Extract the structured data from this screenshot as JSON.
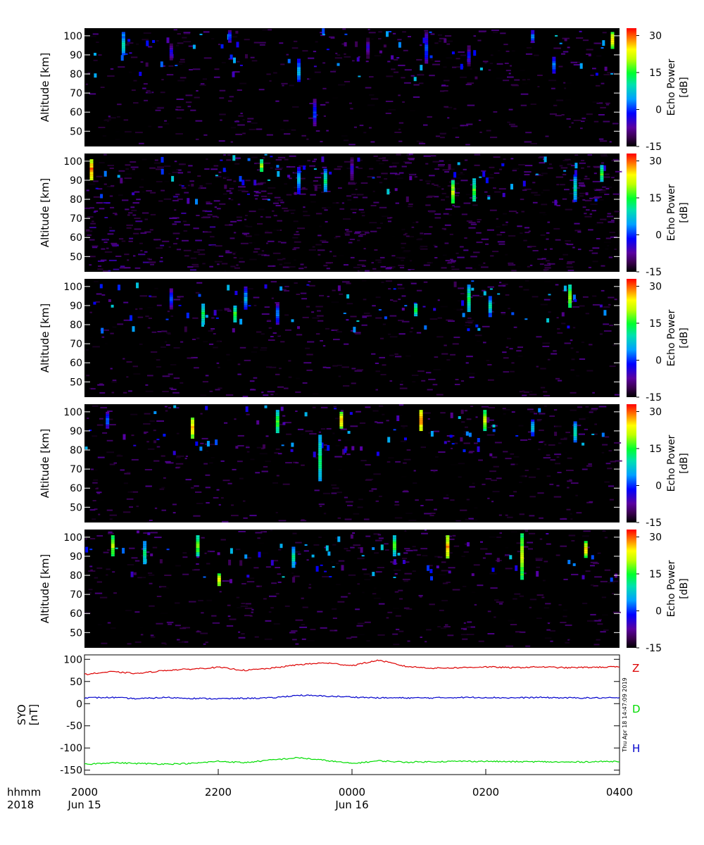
{
  "chart_data": [
    {
      "type": "heatmap",
      "ylabel": "Altitude [km]",
      "yticks": [
        50,
        60,
        70,
        80,
        90,
        100
      ],
      "ylim": [
        42,
        104
      ],
      "colorbar": {
        "label": "Echo Power",
        "unit": "[dB]",
        "ticks": [
          30,
          15,
          0,
          -15
        ],
        "range": [
          -15,
          33
        ]
      },
      "features": [
        {
          "t": 0.07,
          "alt": 96,
          "len": 12,
          "v": 8
        },
        {
          "t": 0.16,
          "alt": 92,
          "len": 8,
          "v": -4
        },
        {
          "t": 0.27,
          "alt": 100,
          "len": 6,
          "v": 0
        },
        {
          "t": 0.4,
          "alt": 82,
          "len": 12,
          "v": 5
        },
        {
          "t": 0.43,
          "alt": 60,
          "len": 14,
          "v": 0
        },
        {
          "t": 0.53,
          "alt": 94,
          "len": 10,
          "v": -5
        },
        {
          "t": 0.64,
          "alt": 94,
          "len": 16,
          "v": 0
        },
        {
          "t": 0.72,
          "alt": 90,
          "len": 10,
          "v": -3
        },
        {
          "t": 0.84,
          "alt": 100,
          "len": 6,
          "v": 2
        },
        {
          "t": 0.88,
          "alt": 85,
          "len": 8,
          "v": 2
        },
        {
          "t": 0.99,
          "alt": 98,
          "len": 8,
          "v": 24
        }
      ]
    },
    {
      "type": "heatmap",
      "ylabel": "Altitude [km]",
      "yticks": [
        50,
        60,
        70,
        80,
        90,
        100
      ],
      "ylim": [
        42,
        104
      ],
      "colorbar": {
        "label": "Echo Power",
        "unit": "[dB]",
        "ticks": [
          30,
          15,
          0,
          -15
        ],
        "range": [
          -15,
          33
        ]
      },
      "features": [
        {
          "t": 0.01,
          "alt": 96,
          "len": 10,
          "v": 28
        },
        {
          "t": 0.33,
          "alt": 98,
          "len": 6,
          "v": 18
        },
        {
          "t": 0.4,
          "alt": 90,
          "len": 14,
          "v": 5
        },
        {
          "t": 0.45,
          "alt": 90,
          "len": 12,
          "v": 10
        },
        {
          "t": 0.5,
          "alt": 96,
          "len": 12,
          "v": -5
        },
        {
          "t": 0.69,
          "alt": 84,
          "len": 12,
          "v": 20
        },
        {
          "t": 0.73,
          "alt": 85,
          "len": 12,
          "v": 15
        },
        {
          "t": 0.92,
          "alt": 86,
          "len": 14,
          "v": 8
        },
        {
          "t": 0.97,
          "alt": 94,
          "len": 8,
          "v": 15
        }
      ]
    },
    {
      "type": "heatmap",
      "ylabel": "Altitude [km]",
      "yticks": [
        50,
        60,
        70,
        80,
        90,
        100
      ],
      "ylim": [
        42,
        104
      ],
      "colorbar": {
        "label": "Echo Power",
        "unit": "[dB]",
        "ticks": [
          30,
          15,
          0,
          -15
        ],
        "range": [
          -15,
          33
        ]
      },
      "features": [
        {
          "t": 0.16,
          "alt": 94,
          "len": 10,
          "v": 0
        },
        {
          "t": 0.22,
          "alt": 86,
          "len": 10,
          "v": 12
        },
        {
          "t": 0.28,
          "alt": 86,
          "len": 8,
          "v": 15
        },
        {
          "t": 0.3,
          "alt": 94,
          "len": 12,
          "v": 4
        },
        {
          "t": 0.36,
          "alt": 86,
          "len": 10,
          "v": 2
        },
        {
          "t": 0.62,
          "alt": 88,
          "len": 6,
          "v": 14
        },
        {
          "t": 0.72,
          "alt": 94,
          "len": 14,
          "v": 12
        },
        {
          "t": 0.76,
          "alt": 90,
          "len": 10,
          "v": 8
        },
        {
          "t": 0.91,
          "alt": 95,
          "len": 12,
          "v": 18
        }
      ]
    },
    {
      "type": "heatmap",
      "ylabel": "Altitude [km]",
      "yticks": [
        50,
        60,
        70,
        80,
        90,
        100
      ],
      "ylim": [
        42,
        104
      ],
      "colorbar": {
        "label": "Echo Power",
        "unit": "[dB]",
        "ticks": [
          30,
          15,
          0,
          -15
        ],
        "range": [
          -15,
          33
        ]
      },
      "features": [
        {
          "t": 0.04,
          "alt": 96,
          "len": 8,
          "v": 2
        },
        {
          "t": 0.2,
          "alt": 92,
          "len": 10,
          "v": 25
        },
        {
          "t": 0.36,
          "alt": 95,
          "len": 12,
          "v": 15
        },
        {
          "t": 0.44,
          "alt": 76,
          "len": 24,
          "v": 12
        },
        {
          "t": 0.48,
          "alt": 96,
          "len": 8,
          "v": 26
        },
        {
          "t": 0.63,
          "alt": 96,
          "len": 10,
          "v": 28
        },
        {
          "t": 0.75,
          "alt": 96,
          "len": 10,
          "v": 20
        },
        {
          "t": 0.84,
          "alt": 92,
          "len": 8,
          "v": 6
        },
        {
          "t": 0.92,
          "alt": 90,
          "len": 10,
          "v": 10
        }
      ]
    },
    {
      "type": "heatmap",
      "ylabel": "Altitude [km]",
      "yticks": [
        50,
        60,
        70,
        80,
        90,
        100
      ],
      "ylim": [
        42,
        104
      ],
      "colorbar": {
        "label": "Echo Power",
        "unit": "[dB]",
        "ticks": [
          30,
          15,
          0,
          -15
        ],
        "range": [
          -15,
          33
        ]
      },
      "features": [
        {
          "t": 0.05,
          "alt": 96,
          "len": 10,
          "v": 20
        },
        {
          "t": 0.11,
          "alt": 92,
          "len": 12,
          "v": 10
        },
        {
          "t": 0.21,
          "alt": 96,
          "len": 10,
          "v": 18
        },
        {
          "t": 0.25,
          "alt": 78,
          "len": 6,
          "v": 24
        },
        {
          "t": 0.39,
          "alt": 90,
          "len": 10,
          "v": 10
        },
        {
          "t": 0.58,
          "alt": 96,
          "len": 10,
          "v": 15
        },
        {
          "t": 0.68,
          "alt": 95,
          "len": 12,
          "v": 26
        },
        {
          "t": 0.82,
          "alt": 90,
          "len": 24,
          "v": 20
        },
        {
          "t": 0.94,
          "alt": 94,
          "len": 8,
          "v": 24
        }
      ]
    },
    {
      "type": "line",
      "ylabel": "SYO",
      "yunit": "[nT]",
      "yticks": [
        100,
        50,
        0,
        -50,
        -100,
        -150
      ],
      "ylim": [
        -160,
        110
      ],
      "timestamp": "Thu Apr 18 14:47:09 2019",
      "x_start_hhmm": "2000",
      "x_end_hhmm": "0400",
      "series": [
        {
          "name": "Z",
          "color": "#dd0000",
          "x": [
            0,
            0.05,
            0.1,
            0.15,
            0.2,
            0.25,
            0.3,
            0.35,
            0.4,
            0.45,
            0.5,
            0.55,
            0.6,
            0.65,
            0.7,
            0.75,
            0.8,
            0.85,
            0.9,
            0.95,
            1.0
          ],
          "y": [
            66,
            72,
            68,
            75,
            78,
            82,
            75,
            80,
            88,
            92,
            86,
            98,
            84,
            80,
            81,
            83,
            81,
            83,
            81,
            82,
            83
          ]
        },
        {
          "name": "D",
          "color": "#00dd00",
          "x": [
            0,
            0.05,
            0.1,
            0.15,
            0.2,
            0.25,
            0.3,
            0.35,
            0.4,
            0.45,
            0.5,
            0.55,
            0.6,
            0.65,
            0.7,
            0.75,
            0.8,
            0.85,
            0.9,
            0.95,
            1.0
          ],
          "y": [
            -137,
            -133,
            -135,
            -136,
            -135,
            -130,
            -133,
            -127,
            -122,
            -128,
            -135,
            -129,
            -132,
            -131,
            -130,
            -130,
            -131,
            -131,
            -132,
            -131,
            -130
          ]
        },
        {
          "name": "H",
          "color": "#0000cc",
          "x": [
            0,
            0.05,
            0.1,
            0.15,
            0.2,
            0.25,
            0.3,
            0.35,
            0.4,
            0.45,
            0.5,
            0.55,
            0.6,
            0.65,
            0.7,
            0.75,
            0.8,
            0.85,
            0.9,
            0.95,
            1.0
          ],
          "y": [
            13,
            14,
            11,
            14,
            12,
            11,
            12,
            13,
            19,
            17,
            15,
            13,
            13,
            13,
            14,
            14,
            13,
            14,
            13,
            13,
            13
          ]
        }
      ]
    }
  ],
  "time_axis": {
    "row1_label": "hhmm",
    "row2_label": "2018",
    "ticks": [
      {
        "frac": 0.0,
        "label": "2000",
        "date": "Jun 15"
      },
      {
        "frac": 0.25,
        "label": "2200",
        "date": ""
      },
      {
        "frac": 0.5,
        "label": "0000",
        "date": "Jun 16"
      },
      {
        "frac": 0.75,
        "label": "0200",
        "date": ""
      },
      {
        "frac": 1.0,
        "label": "0400",
        "date": ""
      }
    ]
  }
}
